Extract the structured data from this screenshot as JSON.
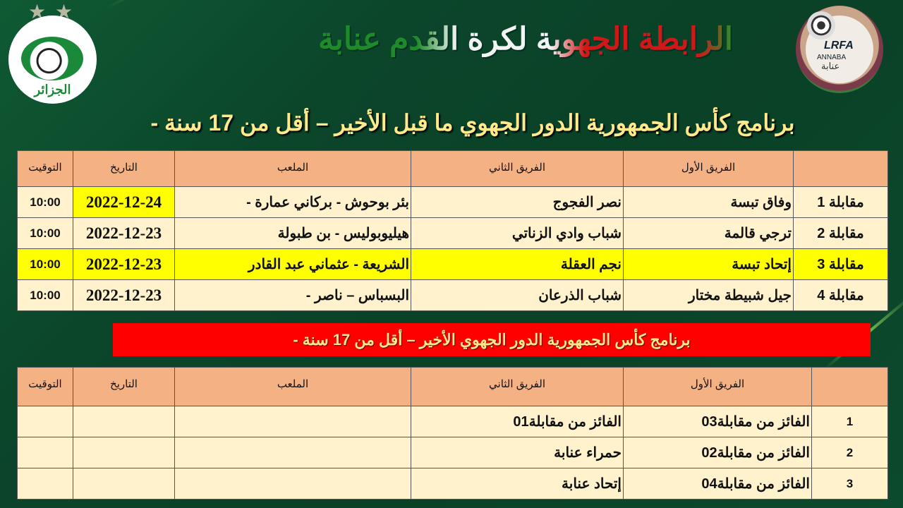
{
  "header": {
    "title": "الرابطة الجهوية  لكرة القدم عنابة",
    "subtitle": "برنامج كأس الجمهورية الدور الجهوي ما قبل الأخير  – أقل من 17 سنة -",
    "logo_right_text": "LRFA",
    "logo_right_city": "ANNABA",
    "logo_right_ar": "عنابة",
    "logo_left_text": "الجزائر"
  },
  "colors": {
    "header_cell": "#f4b183",
    "row_cell": "#fff2cc",
    "highlight": "#ffff00",
    "banner": "#ff0000",
    "background": "#0c4a2d"
  },
  "table1": {
    "headers": [
      "",
      "الفريق الأول",
      "الفريق الثاني",
      "الملعب",
      "التاريخ",
      "التوقيت"
    ],
    "rows": [
      {
        "match": "مقابلة 1",
        "team1": "وفاق تبسة",
        "team2": "نصر الفجوج",
        "stadium": "بئر بوحوش - بركاني عمارة -",
        "date": "2022-12-24",
        "time": "10:00",
        "highlight_date": true,
        "highlight_row": false
      },
      {
        "match": "مقابلة 2",
        "team1": "ترجي قالمة",
        "team2": "شباب وادي الزناتي",
        "stadium": "هيليوبوليس - بن طبولة",
        "date": "2022-12-23",
        "time": "10:00",
        "highlight_date": false,
        "highlight_row": false
      },
      {
        "match": "مقابلة 3",
        "team1": "إتحاد تبسة",
        "team2": "نجم العقلة",
        "stadium": "الشريعة - عثماني عبد القادر",
        "date": "2022-12-23",
        "time": "10:00",
        "highlight_date": false,
        "highlight_row": true
      },
      {
        "match": "مقابلة 4",
        "team1": "جيل شبيطة مختار",
        "team2": "شباب الذرعان",
        "stadium": "البسباس – ناصر -",
        "date": "2022-12-23",
        "time": "10:00",
        "highlight_date": false,
        "highlight_row": false
      }
    ]
  },
  "banner": "برنامج كأس الجمهورية الدور الجهوي الأخير – أقل من 17 سنة -",
  "table2": {
    "headers": [
      "",
      "الفريق الأول",
      "الفريق الثاني",
      "الملعب",
      "التاريخ",
      "التوقيت"
    ],
    "rows": [
      {
        "match": "1",
        "team1": "الفائز من مقابلة03",
        "team2": "الفائز من مقابلة01",
        "stadium": "",
        "date": "",
        "time": ""
      },
      {
        "match": "2",
        "team1": "الفائز من مقابلة02",
        "team2": "حمراء عنابة",
        "stadium": "",
        "date": "",
        "time": ""
      },
      {
        "match": "3",
        "team1": "الفائز من مقابلة04",
        "team2": "إتحاد عنابة",
        "stadium": "",
        "date": "",
        "time": ""
      }
    ]
  }
}
